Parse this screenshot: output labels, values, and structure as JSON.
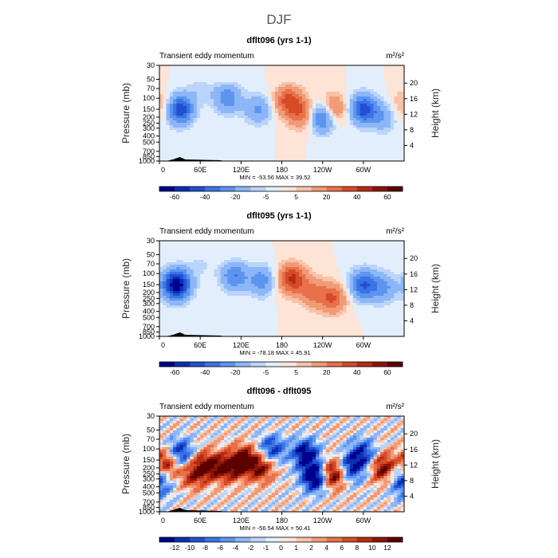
{
  "figure_title": "DJF",
  "chart_data": [
    {
      "type": "heatmap",
      "title": "dflt096 (yrs 1-1)",
      "left_label": "Transient eddy momentum",
      "units": "m²/s²",
      "ylabel": "Pressure (mb)",
      "ylabel_right": "Height (km)",
      "x_ticks": [
        "0",
        "60E",
        "120E",
        "180",
        "120W",
        "60W"
      ],
      "y_ticks": [
        "30",
        "50",
        "70",
        "100",
        "150",
        "200",
        "250",
        "300",
        "400",
        "500",
        "700",
        "850",
        "1000"
      ],
      "y_ticks_right": [
        "20",
        "16",
        "12",
        "8",
        "4"
      ],
      "stats": "MIN = -53.56   MAX =  39.52",
      "colorbar_labels": [
        "-60",
        "-40",
        "-20",
        "-5",
        "5",
        "20",
        "40",
        "60"
      ],
      "colorbar_colors": [
        "#00008f",
        "#0a2fb4",
        "#2050d0",
        "#3a73e6",
        "#5c94f0",
        "#8cb6f7",
        "#bad4fb",
        "#e3eefc",
        "#fde4d6",
        "#f8c2a8",
        "#f19a76",
        "#e8704a",
        "#d64a27",
        "#b52a12",
        "#8a1406",
        "#5c0000"
      ],
      "blobs": [
        {
          "lon": 30,
          "p": 150,
          "v": -48
        },
        {
          "lon": 100,
          "p": 100,
          "v": -28
        },
        {
          "lon": 145,
          "p": 150,
          "v": -22
        },
        {
          "lon": 190,
          "p": 110,
          "v": 34
        },
        {
          "lon": 210,
          "p": 180,
          "v": 26
        },
        {
          "lon": 240,
          "p": 200,
          "v": -42
        },
        {
          "lon": 255,
          "p": 150,
          "v": 30
        },
        {
          "lon": 300,
          "p": 150,
          "v": -45
        },
        {
          "lon": 330,
          "p": 200,
          "v": -18
        },
        {
          "lon": 0,
          "p": 130,
          "v": 14
        },
        {
          "lon": 60,
          "p": 70,
          "v": -8
        }
      ]
    },
    {
      "type": "heatmap",
      "title": "dflt095 (yrs 1-1)",
      "left_label": "Transient eddy momentum",
      "units": "m²/s²",
      "ylabel": "Pressure (mb)",
      "ylabel_right": "Height (km)",
      "x_ticks": [
        "0",
        "60E",
        "120E",
        "180",
        "120W",
        "60W"
      ],
      "y_ticks": [
        "30",
        "50",
        "70",
        "100",
        "150",
        "200",
        "250",
        "300",
        "400",
        "500",
        "700",
        "850",
        "1000"
      ],
      "y_ticks_right": [
        "20",
        "16",
        "12",
        "8",
        "4"
      ],
      "stats": "MIN = -78.18   MAX =  45.91",
      "colorbar_labels": [
        "-60",
        "-40",
        "-20",
        "-5",
        "5",
        "20",
        "40",
        "60"
      ],
      "colorbar_colors": [
        "#00008f",
        "#0a2fb4",
        "#2050d0",
        "#3a73e6",
        "#5c94f0",
        "#8cb6f7",
        "#bad4fb",
        "#e3eefc",
        "#fde4d6",
        "#f8c2a8",
        "#f19a76",
        "#e8704a",
        "#d64a27",
        "#b52a12",
        "#8a1406",
        "#5c0000"
      ],
      "blobs": [
        {
          "lon": 25,
          "p": 150,
          "v": -70
        },
        {
          "lon": 110,
          "p": 110,
          "v": -30
        },
        {
          "lon": 150,
          "p": 130,
          "v": -26
        },
        {
          "lon": 195,
          "p": 120,
          "v": 42
        },
        {
          "lon": 225,
          "p": 200,
          "v": 22
        },
        {
          "lon": 255,
          "p": 250,
          "v": 30
        },
        {
          "lon": 300,
          "p": 150,
          "v": -40
        },
        {
          "lon": 330,
          "p": 170,
          "v": -22
        },
        {
          "lon": 60,
          "p": 70,
          "v": -6
        }
      ]
    },
    {
      "type": "heatmap",
      "title": "dflt096 - dflt095",
      "left_label": "Transient eddy momentum",
      "units": "m²/s²",
      "ylabel": "Pressure (mb)",
      "ylabel_right": "Height (km)",
      "x_ticks": [
        "0",
        "60E",
        "120E",
        "180",
        "120W",
        "60W"
      ],
      "y_ticks": [
        "30",
        "50",
        "70",
        "100",
        "150",
        "200",
        "250",
        "300",
        "400",
        "500",
        "700",
        "850",
        "1000"
      ],
      "y_ticks_right": [
        "20",
        "16",
        "12",
        "8",
        "4"
      ],
      "stats": "MIN = -56.54   MAX =  50.41",
      "colorbar_labels": [
        "-12",
        "-10",
        "-8",
        "-6",
        "-4",
        "-2",
        "-1",
        "0",
        "1",
        "2",
        "4",
        "6",
        "8",
        "10",
        "12"
      ],
      "colorbar_colors": [
        "#00008f",
        "#0a2fb4",
        "#2050d0",
        "#3a73e6",
        "#5c94f0",
        "#8cb6f7",
        "#bad4fb",
        "#e3eefc",
        "#fde4d6",
        "#f8c2a8",
        "#f19a76",
        "#e8704a",
        "#d64a27",
        "#b52a12",
        "#8a1406",
        "#5c0000"
      ],
      "blobs": [
        {
          "lon": 10,
          "p": 170,
          "v": 24
        },
        {
          "lon": 30,
          "p": 120,
          "v": -22
        },
        {
          "lon": 50,
          "p": 250,
          "v": 16
        },
        {
          "lon": 70,
          "p": 180,
          "v": 18
        },
        {
          "lon": 100,
          "p": 200,
          "v": 20
        },
        {
          "lon": 125,
          "p": 150,
          "v": 22
        },
        {
          "lon": 150,
          "p": 200,
          "v": 18
        },
        {
          "lon": 165,
          "p": 100,
          "v": -18
        },
        {
          "lon": 215,
          "p": 120,
          "v": -24
        },
        {
          "lon": 230,
          "p": 280,
          "v": -30
        },
        {
          "lon": 255,
          "p": 250,
          "v": 28
        },
        {
          "lon": 280,
          "p": 200,
          "v": -20
        },
        {
          "lon": 300,
          "p": 120,
          "v": -18
        },
        {
          "lon": 330,
          "p": 200,
          "v": 22
        },
        {
          "lon": 355,
          "p": 250,
          "v": -14
        },
        {
          "lon": 0,
          "p": 400,
          "v": -10
        }
      ]
    }
  ]
}
